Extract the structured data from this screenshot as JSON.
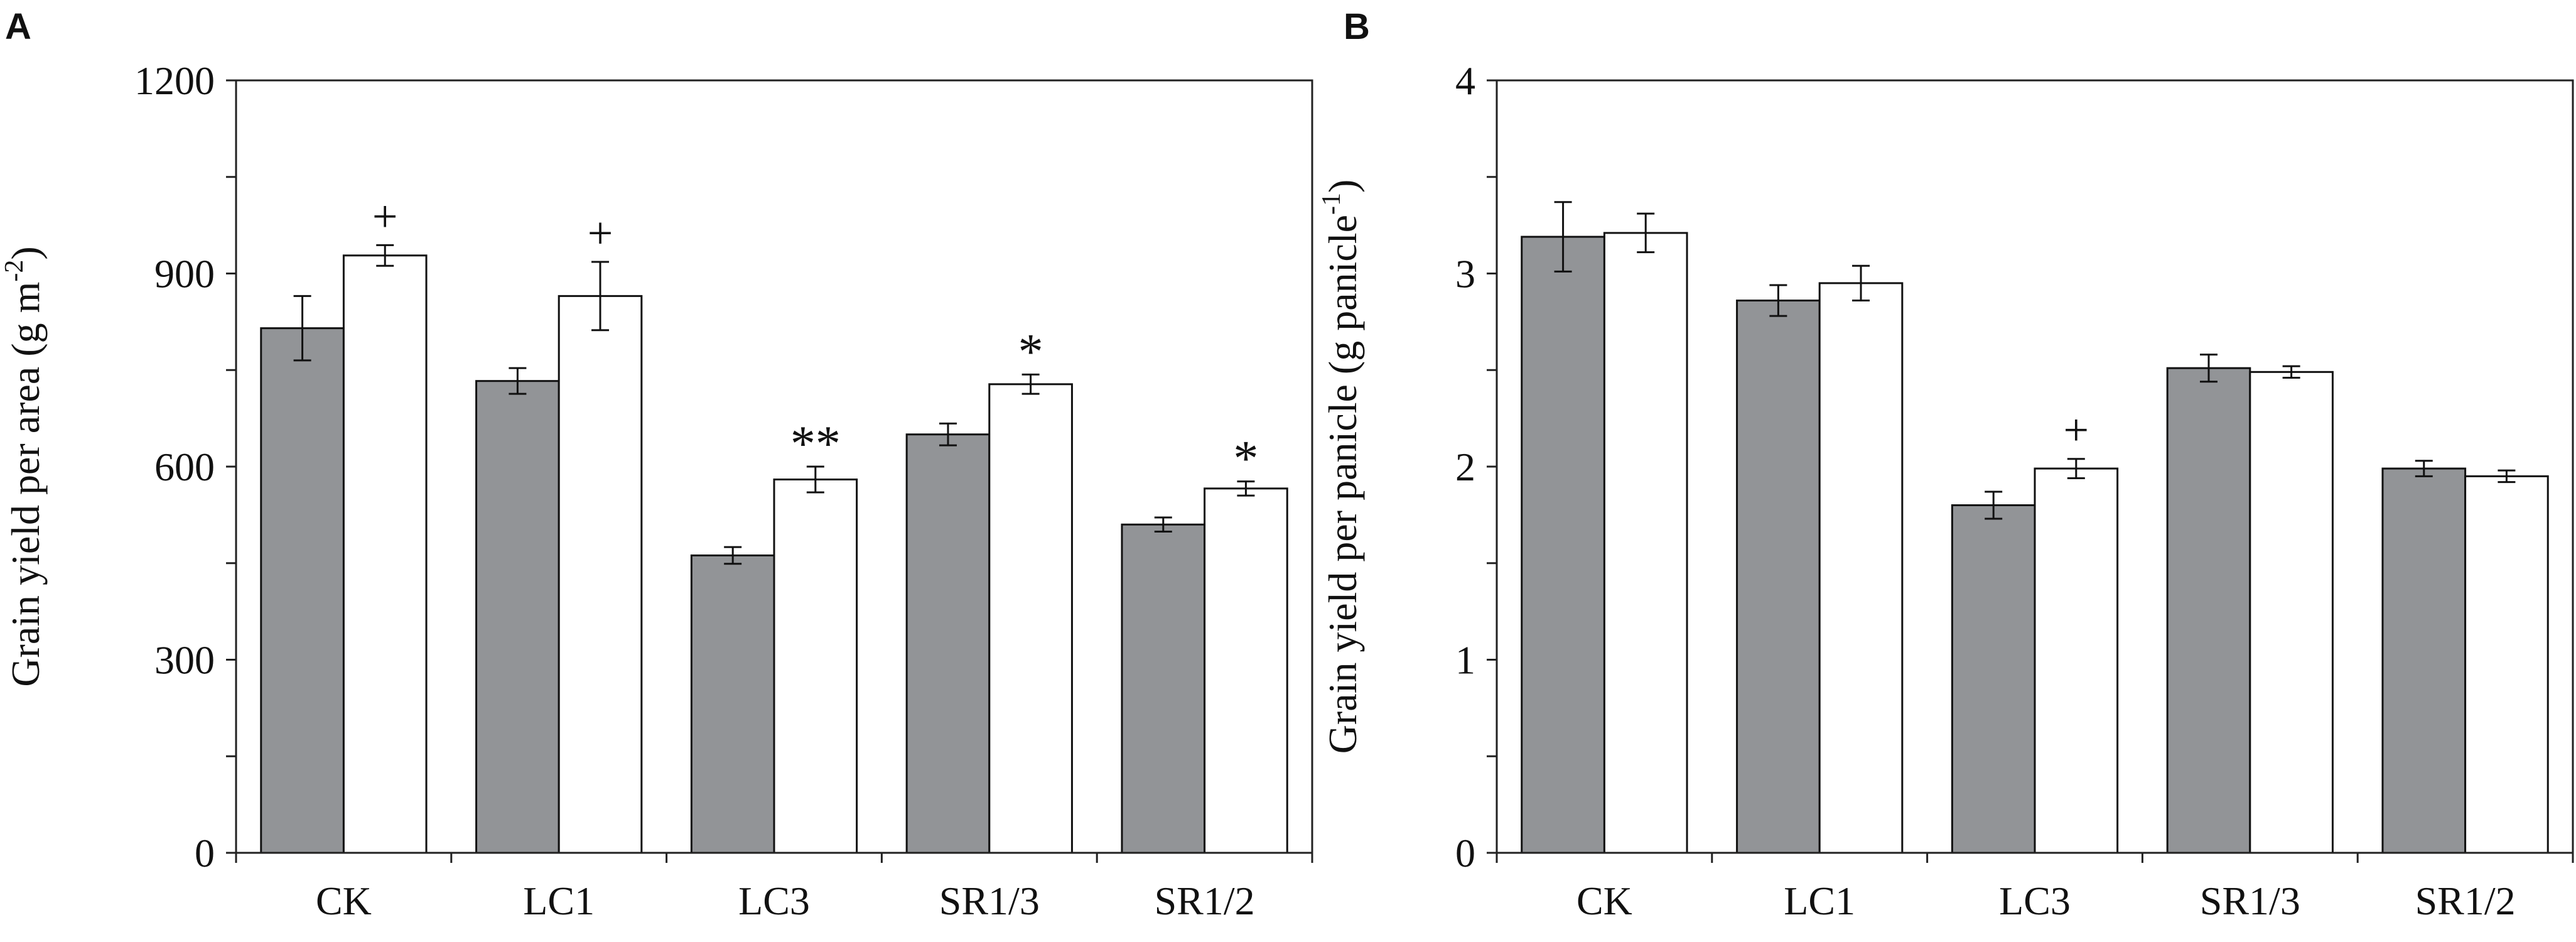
{
  "chart_data": [
    {
      "panel": "A",
      "type": "bar",
      "categories": [
        "CK",
        "LC1",
        "LC3",
        "SR1/3",
        "SR1/2"
      ],
      "series": [
        {
          "name": "gray",
          "color": "#929497",
          "values": [
            815,
            733,
            462,
            650,
            510
          ],
          "errors": [
            50,
            20,
            13,
            17,
            11
          ]
        },
        {
          "name": "white",
          "color": "#ffffff",
          "values": [
            928,
            865,
            580,
            728,
            566
          ],
          "errors": [
            16,
            53,
            20,
            15,
            11
          ]
        }
      ],
      "annotations": [
        "+",
        "+",
        "**",
        "*",
        "*"
      ],
      "ylabel_main": "Grain yield per area (g m",
      "ylabel_sup": "-2",
      "ylabel_end": ")",
      "yticks": [
        "0",
        "300",
        "600",
        "900",
        "1200"
      ],
      "ylim": [
        0,
        1200
      ],
      "ytick_values": [
        0,
        300,
        600,
        900,
        1200
      ],
      "minor_step": 150
    },
    {
      "panel": "B",
      "type": "bar",
      "categories": [
        "CK",
        "LC1",
        "LC3",
        "SR1/3",
        "SR1/2"
      ],
      "series": [
        {
          "name": "gray",
          "color": "#929497",
          "values": [
            3.19,
            2.86,
            1.8,
            2.51,
            1.99
          ],
          "errors": [
            0.18,
            0.08,
            0.07,
            0.07,
            0.04
          ]
        },
        {
          "name": "white",
          "color": "#ffffff",
          "values": [
            3.21,
            2.95,
            1.99,
            2.49,
            1.95
          ],
          "errors": [
            0.1,
            0.09,
            0.05,
            0.03,
            0.03
          ]
        }
      ],
      "annotations": [
        "",
        "",
        "+",
        "",
        ""
      ],
      "ylabel_main": "Grain yield per panicle (g panicle",
      "ylabel_sup": "-1",
      "ylabel_end": ")",
      "yticks": [
        "0",
        "1",
        "2",
        "3",
        "4"
      ],
      "ylim": [
        0,
        4
      ],
      "ytick_values": [
        0,
        1,
        2,
        3,
        4
      ],
      "minor_step": 0.5
    }
  ]
}
